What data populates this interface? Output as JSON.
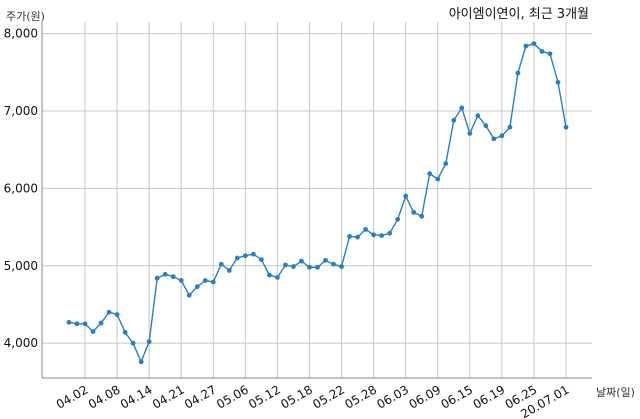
{
  "chart_data": {
    "type": "line",
    "title": "아이엠이연이, 최근 3개월",
    "ylabel": "주가(원)",
    "xlabel": "날짜(일)",
    "ylim": [
      3550,
      8150
    ],
    "yticks": [
      4000,
      5000,
      6000,
      7000,
      8000
    ],
    "ytick_labels": [
      "4,000",
      "5,000",
      "6,000",
      "7,000",
      "8,000"
    ],
    "grid": true,
    "line_color": "#2c7fb8",
    "x_tick_labels": [
      {
        "index": 2,
        "label": "04.02"
      },
      {
        "index": 6,
        "label": "04.08"
      },
      {
        "index": 10,
        "label": "04.14"
      },
      {
        "index": 14,
        "label": "04.21"
      },
      {
        "index": 18,
        "label": "04.27"
      },
      {
        "index": 22,
        "label": "05.06"
      },
      {
        "index": 26,
        "label": "05.12"
      },
      {
        "index": 30,
        "label": "05.18"
      },
      {
        "index": 34,
        "label": "05.22"
      },
      {
        "index": 38,
        "label": "05.28"
      },
      {
        "index": 42,
        "label": "06.03"
      },
      {
        "index": 46,
        "label": "06.09"
      },
      {
        "index": 50,
        "label": "06.15"
      },
      {
        "index": 54,
        "label": "06.19"
      },
      {
        "index": 58,
        "label": "06.25"
      },
      {
        "index": 62,
        "label": "20.07.01"
      }
    ],
    "series": [
      {
        "values": [
          4270,
          4250,
          4250,
          4150,
          4260,
          4400,
          4370,
          4140,
          4000,
          3760,
          4020,
          4840,
          4890,
          4860,
          4810,
          4620,
          4730,
          4810,
          4790,
          5020,
          4940,
          5100,
          5130,
          5150,
          5080,
          4880,
          4850,
          5010,
          4990,
          5060,
          4980,
          4980,
          5070,
          5020,
          4990,
          5380,
          5370,
          5470,
          5400,
          5390,
          5420,
          5600,
          5900,
          5690,
          5640,
          6190,
          6120,
          6320,
          6880,
          7040,
          6710,
          6940,
          6810,
          6640,
          6680,
          6790,
          7490,
          7840,
          7870,
          7770,
          7740,
          7370,
          6790
        ]
      }
    ]
  }
}
